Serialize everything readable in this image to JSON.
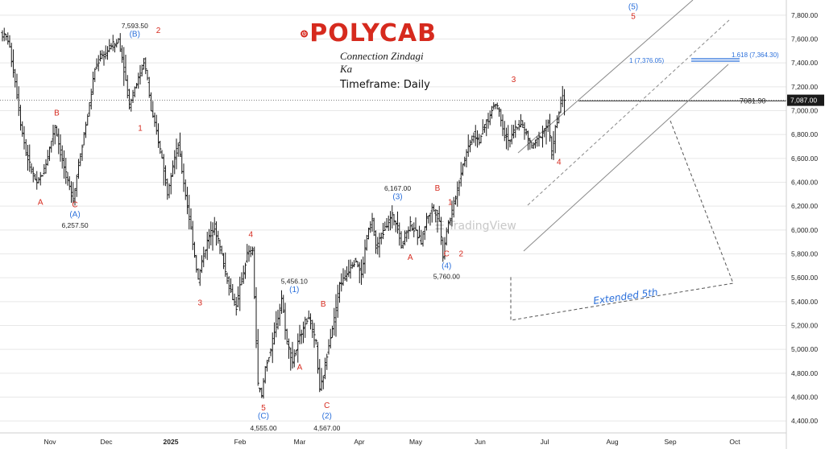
{
  "branding": {
    "name": "POLYCAB",
    "tagline": "Connection Zindagi Ka",
    "timeframe": "Timeframe: Daily",
    "brand_color": "#d62a1e"
  },
  "watermark": "TradingView (faint, center)",
  "colors": {
    "candle": "#1a1a1a",
    "wave_major": "#2a6fdb",
    "wave_minor": "#d62a1e",
    "channel": "#8a8a8a",
    "grid": "#e8e8e8",
    "price_tag_bg": "#1a1a1a"
  },
  "chart_data": {
    "type": "ohlc",
    "timeframe": "Daily",
    "y_axis": {
      "ticks": [
        "4,400.00",
        "4,600.00",
        "4,800.00",
        "5,000.00",
        "5,200.00",
        "5,400.00",
        "5,600.00",
        "5,800.00",
        "6,000.00",
        "6,200.00",
        "6,400.00",
        "6,600.00",
        "6,800.00",
        "7,000.00",
        "7,200.00",
        "7,400.00",
        "7,600.00",
        "7,800.00"
      ],
      "range": [
        4300,
        7900
      ]
    },
    "x_axis": {
      "ticks": [
        "Nov",
        "Dec",
        "2025",
        "Feb",
        "Mar",
        "Apr",
        "May",
        "Jun",
        "Jul",
        "Aug",
        "Sep",
        "Oct"
      ],
      "bold_ticks": [
        "2025"
      ]
    },
    "current_price": {
      "value": 7087.0,
      "label": "7,087.00"
    },
    "horizontal_level": {
      "value": 7081.9,
      "label": "7081.90"
    },
    "fib_levels": [
      {
        "label": "1 (7,376.05)",
        "value": 7376.05
      },
      {
        "label": "1.618 (7,364.30)",
        "value": 7364.3
      }
    ],
    "price_path_approx": [
      [
        0,
        7650
      ],
      [
        4,
        7600
      ],
      [
        8,
        7250
      ],
      [
        11,
        6900
      ],
      [
        14,
        6650
      ],
      [
        17,
        6500
      ],
      [
        20,
        6380
      ],
      [
        24,
        6500
      ],
      [
        28,
        6750
      ],
      [
        30,
        6880
      ],
      [
        33,
        6650
      ],
      [
        37,
        6400
      ],
      [
        40,
        6260
      ],
      [
        43,
        6550
      ],
      [
        46,
        6800
      ],
      [
        49,
        7050
      ],
      [
        52,
        7350
      ],
      [
        55,
        7450
      ],
      [
        58,
        7480
      ],
      [
        61,
        7550
      ],
      [
        64,
        7560
      ],
      [
        65,
        7600
      ],
      [
        67,
        7450
      ],
      [
        69,
        7250
      ],
      [
        71,
        7050
      ],
      [
        74,
        7200
      ],
      [
        77,
        7300
      ],
      [
        79,
        7420
      ],
      [
        81,
        7260
      ],
      [
        83,
        7000
      ],
      [
        86,
        6820
      ],
      [
        89,
        6600
      ],
      [
        92,
        6320
      ],
      [
        95,
        6550
      ],
      [
        98,
        6720
      ],
      [
        100,
        6500
      ],
      [
        103,
        6200
      ],
      [
        106,
        5900
      ],
      [
        109,
        5580
      ],
      [
        112,
        5800
      ],
      [
        115,
        5950
      ],
      [
        118,
        6030
      ],
      [
        121,
        5850
      ],
      [
        124,
        5650
      ],
      [
        127,
        5480
      ],
      [
        130,
        5350
      ],
      [
        132,
        5520
      ],
      [
        134,
        5650
      ],
      [
        136,
        5800
      ],
      [
        139,
        5820
      ],
      [
        142,
        4700
      ],
      [
        144,
        4600
      ],
      [
        146,
        4850
      ],
      [
        149,
        5000
      ],
      [
        152,
        5200
      ],
      [
        155,
        5430
      ],
      [
        158,
        5060
      ],
      [
        161,
        4900
      ],
      [
        164,
        5050
      ],
      [
        167,
        5200
      ],
      [
        170,
        5280
      ],
      [
        172,
        5150
      ],
      [
        174,
        5050
      ],
      [
        176,
        4650
      ],
      [
        178,
        4780
      ],
      [
        181,
        5050
      ],
      [
        184,
        5250
      ],
      [
        187,
        5550
      ],
      [
        190,
        5600
      ],
      [
        193,
        5700
      ],
      [
        196,
        5750
      ],
      [
        199,
        5620
      ],
      [
        202,
        5950
      ],
      [
        205,
        6080
      ],
      [
        207,
        5850
      ],
      [
        210,
        5950
      ],
      [
        213,
        6050
      ],
      [
        216,
        6120
      ],
      [
        219,
        6030
      ],
      [
        221,
        5870
      ],
      [
        223,
        5950
      ],
      [
        226,
        6050
      ],
      [
        229,
        5980
      ],
      [
        232,
        5900
      ],
      [
        235,
        6100
      ],
      [
        238,
        6180
      ],
      [
        240,
        6150
      ],
      [
        242,
        6080
      ],
      [
        244,
        5790
      ],
      [
        246,
        6000
      ],
      [
        249,
        6150
      ],
      [
        252,
        6350
      ],
      [
        255,
        6550
      ],
      [
        258,
        6700
      ],
      [
        261,
        6800
      ],
      [
        264,
        6750
      ],
      [
        267,
        6880
      ],
      [
        270,
        6950
      ],
      [
        272,
        7060
      ],
      [
        274,
        7040
      ],
      [
        276,
        6940
      ],
      [
        278,
        6800
      ],
      [
        281,
        6750
      ],
      [
        284,
        6850
      ],
      [
        287,
        6900
      ],
      [
        290,
        6800
      ],
      [
        293,
        6700
      ],
      [
        296,
        6750
      ],
      [
        299,
        6820
      ],
      [
        302,
        6900
      ],
      [
        304,
        6640
      ],
      [
        306,
        6850
      ],
      [
        308,
        6980
      ],
      [
        310,
        7150
      ]
    ],
    "wave_labels": [
      {
        "text": "A",
        "color": "red",
        "x": 21,
        "y": 6210
      },
      {
        "text": "B",
        "color": "red",
        "x": 30,
        "y": 6960
      },
      {
        "text": "C",
        "color": "red",
        "x": 40,
        "y": 6190
      },
      {
        "text": "(A)",
        "color": "blue",
        "x": 40,
        "y": 6110
      },
      {
        "text": "6,257.50",
        "color": "black",
        "x": 40,
        "y": 6020
      },
      {
        "text": "7,593.50",
        "color": "black",
        "x": 73,
        "y": 7690
      },
      {
        "text": "(B)",
        "color": "blue",
        "x": 73,
        "y": 7620
      },
      {
        "text": "2",
        "color": "red",
        "x": 86,
        "y": 7650
      },
      {
        "text": "1",
        "color": "red",
        "x": 76,
        "y": 6830
      },
      {
        "text": "3",
        "color": "red",
        "x": 109,
        "y": 5370
      },
      {
        "text": "4",
        "color": "red",
        "x": 137,
        "y": 5940
      },
      {
        "text": "5,456.10",
        "color": "black",
        "x": 161,
        "y": 5550
      },
      {
        "text": "(1)",
        "color": "blue",
        "x": 161,
        "y": 5480
      },
      {
        "text": "A",
        "color": "red",
        "x": 164,
        "y": 4830
      },
      {
        "text": "B",
        "color": "red",
        "x": 177,
        "y": 5360
      },
      {
        "text": "5",
        "color": "red",
        "x": 144,
        "y": 4490
      },
      {
        "text": "(C)",
        "color": "blue",
        "x": 144,
        "y": 4420
      },
      {
        "text": "4,555.00",
        "color": "black",
        "x": 144,
        "y": 4320
      },
      {
        "text": "C",
        "color": "red",
        "x": 179,
        "y": 4510
      },
      {
        "text": "(2)",
        "color": "blue",
        "x": 179,
        "y": 4420
      },
      {
        "text": "4,567.00",
        "color": "black",
        "x": 179,
        "y": 4320
      },
      {
        "text": "6,167.00",
        "color": "black",
        "x": 218,
        "y": 6330
      },
      {
        "text": "(3)",
        "color": "blue",
        "x": 218,
        "y": 6260
      },
      {
        "text": "A",
        "color": "red",
        "x": 225,
        "y": 5750
      },
      {
        "text": "B",
        "color": "red",
        "x": 240,
        "y": 6330
      },
      {
        "text": "1",
        "color": "red",
        "x": 247,
        "y": 6210
      },
      {
        "text": "C",
        "color": "red",
        "x": 245,
        "y": 5780
      },
      {
        "text": "(4)",
        "color": "blue",
        "x": 245,
        "y": 5680
      },
      {
        "text": "5,760.00",
        "color": "black",
        "x": 245,
        "y": 5590
      },
      {
        "text": "2",
        "color": "red",
        "x": 253,
        "y": 5780
      },
      {
        "text": "3",
        "color": "red",
        "x": 282,
        "y": 7240
      },
      {
        "text": "4",
        "color": "red",
        "x": 307,
        "y": 6550
      },
      {
        "text": "(5)",
        "color": "blue",
        "x": 348,
        "y": 7850
      },
      {
        "text": "5",
        "color": "red",
        "x": 348,
        "y": 7770
      }
    ],
    "annotation_text": "Extended 5th",
    "grid": false,
    "legend": "none"
  }
}
